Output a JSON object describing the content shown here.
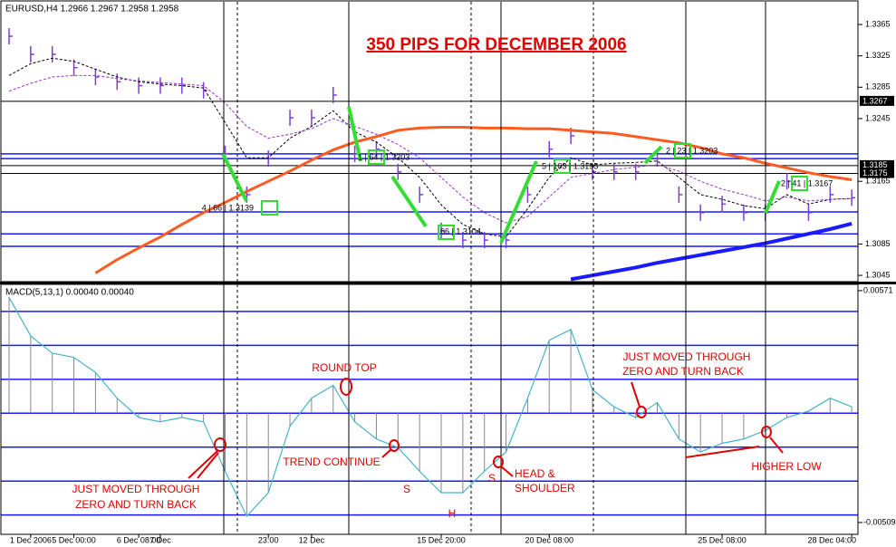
{
  "chart_data": [
    {
      "type": "price",
      "title": "EURUSD,H4  1.2966 1.2967 1.2958 1.2958",
      "headline": "350 PIPS FOR DECEMBER 2006",
      "notes": [
        "4 | 66 | 1.3139",
        "1 | 64 | 1.3203",
        "66 | 1.3104",
        "5 | 103 | 1.3195",
        "2 | 23 | 1.3203",
        "2 | 41 | 1.3167"
      ],
      "categories": [
        null,
        "1 Dec 2006",
        null,
        "5 Dec 00:00",
        null,
        null,
        "6 Dec 08:00",
        "7 Dec",
        null,
        null,
        null,
        null,
        "23:00",
        null,
        "12 Dec",
        null,
        null,
        null,
        null,
        null,
        "15 Dec 20:00",
        null,
        null,
        null,
        null,
        "20 Dec 08:00",
        null,
        null,
        null,
        null,
        null,
        null,
        null,
        "25 Dec 08:00",
        null,
        null,
        null,
        null,
        null,
        "28 Dec 04:00"
      ],
      "series": [
        {
          "name": "Close",
          "color": "#7b3fd6",
          "values": [
            1.335,
            1.3327,
            1.3327,
            1.331,
            1.3298,
            1.3292,
            1.3287,
            1.3287,
            1.3287,
            1.3281,
            1.32,
            1.3148,
            1.3194,
            1.3246,
            1.3246,
            1.3275,
            1.32,
            1.3206,
            1.3177,
            1.3148,
            1.3102,
            1.309,
            1.309,
            1.309,
            1.3148,
            1.3206,
            1.3223,
            1.3177,
            1.3177,
            1.3177,
            1.3194,
            1.3148,
            1.3125,
            1.3136,
            1.3125,
            1.3125,
            1.3165,
            1.3125,
            1.3148,
            1.3144
          ]
        },
        {
          "name": "Fast MA",
          "color": "#000000",
          "dash": true,
          "values": [
            1.33,
            1.3315,
            1.3322,
            1.3318,
            1.3308,
            1.3298,
            1.3292,
            1.3289,
            1.3287,
            1.3284,
            1.324,
            1.3195,
            1.3195,
            1.322,
            1.3235,
            1.3255,
            1.3228,
            1.3215,
            1.3195,
            1.317,
            1.3135,
            1.311,
            1.3098,
            1.3094,
            1.313,
            1.317,
            1.3195,
            1.3186,
            1.3188,
            1.3189,
            1.3191,
            1.317,
            1.3148,
            1.3142,
            1.3134,
            1.313,
            1.3148,
            1.3136,
            1.3142,
            1.3143
          ]
        },
        {
          "name": "Slow MA",
          "color": "#9932cc",
          "dash": true,
          "values": [
            1.328,
            1.329,
            1.3298,
            1.33,
            1.33,
            1.3296,
            1.3293,
            1.3291,
            1.3289,
            1.3287,
            1.3265,
            1.3235,
            1.322,
            1.3225,
            1.3232,
            1.3245,
            1.3235,
            1.3225,
            1.3212,
            1.3195,
            1.317,
            1.3145,
            1.3125,
            1.3112,
            1.312,
            1.3145,
            1.317,
            1.3175,
            1.318,
            1.3183,
            1.3186,
            1.3178,
            1.3165,
            1.3155,
            1.3148,
            1.314,
            1.3145,
            1.314,
            1.3142,
            1.3143
          ]
        },
        {
          "name": "Long MA",
          "color": "#ff5a1f",
          "width": 3,
          "values": [
            null,
            null,
            null,
            null,
            1.3048,
            1.3065,
            1.308,
            1.3094,
            1.311,
            1.3125,
            1.3138,
            1.3152,
            1.3165,
            1.3178,
            1.3192,
            1.3205,
            1.3215,
            1.3222,
            1.323,
            1.3233,
            1.3234,
            1.3234,
            1.3233,
            1.3233,
            1.3232,
            1.3232,
            1.323,
            1.3228,
            1.3226,
            1.3222,
            1.3218,
            1.3214,
            1.3208,
            1.32,
            1.3195,
            1.3188,
            1.3182,
            1.3176,
            1.3171,
            1.3167
          ]
        },
        {
          "name": "Trend MA",
          "color": "#1a1aff",
          "width": 4,
          "values": [
            null,
            null,
            null,
            null,
            null,
            null,
            null,
            null,
            null,
            null,
            null,
            null,
            null,
            null,
            null,
            null,
            null,
            null,
            null,
            null,
            null,
            null,
            null,
            null,
            null,
            null,
            1.304,
            1.3045,
            1.305,
            1.3055,
            1.3061,
            1.3066,
            1.3071,
            1.3076,
            1.3081,
            1.3086,
            1.3092,
            1.3098,
            1.3104,
            1.3111
          ]
        }
      ],
      "black_levels": [
        1.3267,
        1.3185,
        1.3175
      ],
      "blue_levels": [
        1.32,
        1.3194,
        1.3126,
        1.3098,
        1.3082
      ],
      "ylim": [
        1.3037,
        1.3387
      ],
      "yticks": [
        1.3365,
        1.3325,
        1.3285,
        1.3245,
        1.3165,
        1.3085,
        1.3045
      ]
    },
    {
      "type": "macd",
      "title": "MACD(5,13,1) 0.00040 0.00040",
      "annotations": [
        "ROUND TOP",
        "TREND CONTINUE",
        "S",
        "H",
        "S",
        "HEAD &",
        "SHOULDER",
        "JUST MOVED THROUGH",
        "ZERO AND TURN BACK",
        "JUST MOVED THROUGH",
        "ZERO AND TURN BACK",
        "HIGHER LOW"
      ],
      "series": [
        {
          "name": "MACD",
          "color": "#46b4c8",
          "values": [
            0.0054,
            0.0036,
            0.0028,
            0.0026,
            0.0019,
            0.0007,
            -0.0002,
            -0.0004,
            -0.0002,
            -0.0004,
            -0.0027,
            -0.0048,
            -0.0037,
            -0.0006,
            0.0007,
            0.0013,
            -0.0004,
            -0.0012,
            -0.0016,
            -0.0027,
            -0.0037,
            -0.0037,
            -0.0027,
            -0.0018,
            0.0007,
            0.0034,
            0.0039,
            0.0011,
            0.0003,
            -0.0002,
            0.0005,
            -0.0012,
            -0.0018,
            -0.0014,
            -0.0012,
            -0.0008,
            -0.0002,
            0.0001,
            0.0007,
            0.0003
          ]
        }
      ],
      "levels": [
        0.00474,
        0.00316,
        0.00158,
        0,
        -0.00158,
        -0.00316,
        -0.00474
      ],
      "ylim": [
        -0.00564,
        0.00596
      ],
      "yticks": [
        0.00571,
        -0.00509
      ]
    }
  ]
}
